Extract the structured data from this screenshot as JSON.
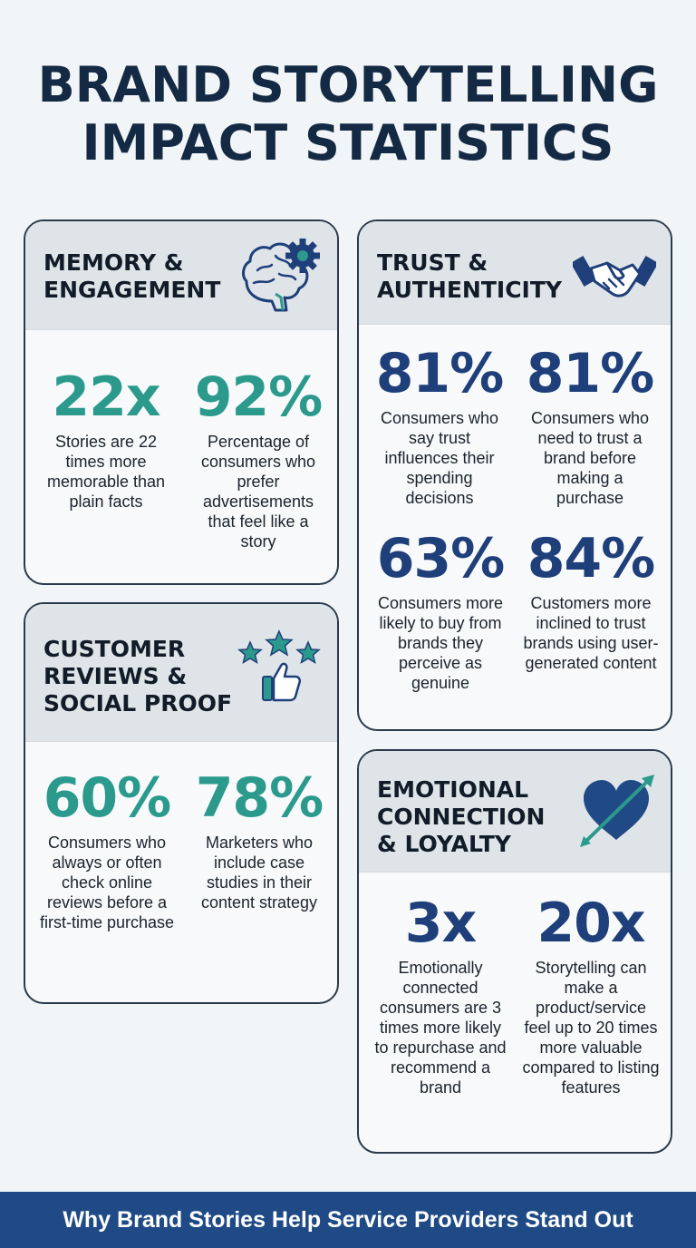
{
  "title": "BRAND STORYTELLING\nIMPACT STATISTICS",
  "colors": {
    "teal": "#2b9a8d",
    "navy": "#1f3f7a",
    "footer": "#1f4a86",
    "header_bg": "#dfe4e8"
  },
  "memory": {
    "heading": "MEMORY &\nENGAGEMENT",
    "icon": "brain-gear-icon",
    "stats": [
      {
        "value": "22x",
        "desc": "Stories are 22 times more memorable than plain facts"
      },
      {
        "value": "92%",
        "desc": "Percentage of consumers who prefer advertisements that feel like a story"
      }
    ]
  },
  "trust": {
    "heading": "TRUST &\nAUTHENTICITY",
    "icon": "handshake-icon",
    "stats": [
      {
        "value": "81%",
        "desc": "Consumers who say trust influences their spending decisions"
      },
      {
        "value": "81%",
        "desc": "Consumers who need to trust a brand before making a purchase"
      },
      {
        "value": "63%",
        "desc": "Consumers more likely to buy from brands they perceive as genuine"
      },
      {
        "value": "84%",
        "desc": "Customers more inclined to trust brands using user-generated content"
      }
    ]
  },
  "reviews": {
    "heading": "CUSTOMER\nREVIEWS &\nSOCIAL PROOF",
    "icon": "stars-thumbs-up-icon",
    "stats": [
      {
        "value": "60%",
        "desc": "Consumers who always or often check online reviews before a first-time purchase"
      },
      {
        "value": "78%",
        "desc": "Marketers who include case studies in their content strategy"
      }
    ]
  },
  "emotion": {
    "heading": "EMOTIONAL\nCONNECTION\n& LOYALTY",
    "icon": "heart-arrow-icon",
    "stats": [
      {
        "value": "3x",
        "desc": "Emotionally connected consumers are 3 times more likely to repurchase and recommend a brand"
      },
      {
        "value": "20x",
        "desc": "Storytelling can make a product/service feel up to 20 times more valuable compared to listing features"
      }
    ]
  },
  "footer": "Why Brand Stories Help Service Providers Stand Out"
}
